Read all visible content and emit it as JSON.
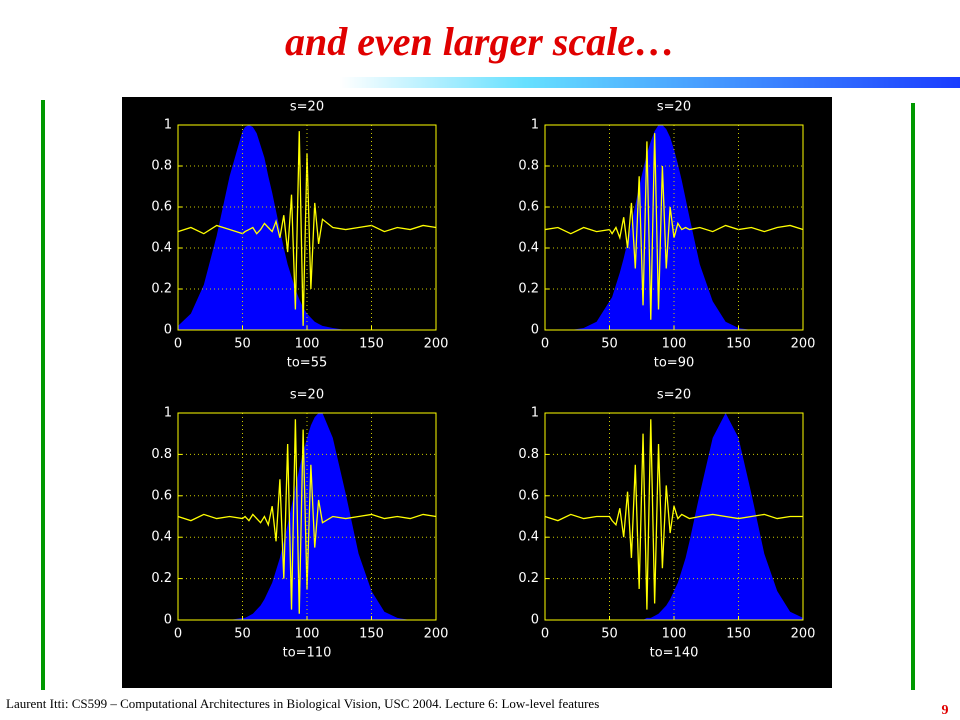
{
  "title": "and even larger scale…",
  "footer": "Laurent Itti: CS599 – Computational Architectures in Biological Vision, USC 2004. Lecture 6: Low-level features",
  "page_number": "9",
  "chart_data": [
    {
      "type": "area",
      "title": "s=20",
      "x_label": "to=55",
      "x": [
        0,
        10,
        20,
        30,
        40,
        50,
        52,
        55,
        58,
        61,
        64,
        67,
        70,
        73,
        76,
        79,
        82,
        85,
        88,
        91,
        94,
        97,
        100,
        103,
        106,
        109,
        112,
        120,
        130,
        140,
        150,
        160,
        170,
        180,
        190,
        200
      ],
      "xlim": [
        0,
        200
      ],
      "ylim": [
        0,
        1
      ],
      "xticks": [
        0,
        50,
        100,
        150,
        200
      ],
      "yticks": [
        0,
        0.2,
        0.4,
        0.6,
        0.8,
        1
      ],
      "grid": true,
      "series": [
        {
          "style": "area",
          "color": "#0000ff",
          "values": [
            0.02,
            0.08,
            0.22,
            0.46,
            0.75,
            0.97,
            0.99,
            1,
            0.99,
            0.96,
            0.9,
            0.84,
            0.75,
            0.67,
            0.58,
            0.49,
            0.4,
            0.32,
            0.26,
            0.2,
            0.15,
            0.11,
            0.08,
            0.06,
            0.04,
            0.03,
            0.02,
            0.01,
            0,
            0,
            0,
            0,
            0,
            0,
            0,
            0
          ]
        },
        {
          "style": "line",
          "color": "#ffff00",
          "values": [
            0.48,
            0.5,
            0.47,
            0.51,
            0.49,
            0.47,
            0.48,
            0.49,
            0.5,
            0.47,
            0.49,
            0.52,
            0.5,
            0.48,
            0.53,
            0.45,
            0.56,
            0.38,
            0.66,
            0.1,
            0.97,
            0.02,
            0.86,
            0.2,
            0.62,
            0.42,
            0.54,
            0.5,
            0.49,
            0.5,
            0.51,
            0.48,
            0.5,
            0.49,
            0.51,
            0.5
          ]
        }
      ]
    },
    {
      "type": "area",
      "title": "s=20",
      "x_label": "to=90",
      "x": [
        0,
        10,
        20,
        30,
        40,
        50,
        52,
        55,
        58,
        61,
        64,
        67,
        70,
        73,
        76,
        79,
        82,
        85,
        88,
        91,
        94,
        97,
        100,
        103,
        106,
        109,
        112,
        120,
        130,
        140,
        150,
        160,
        170,
        180,
        190,
        200
      ],
      "xlim": [
        0,
        200
      ],
      "ylim": [
        0,
        1
      ],
      "xticks": [
        0,
        50,
        100,
        150,
        200
      ],
      "yticks": [
        0,
        0.2,
        0.4,
        0.6,
        0.8,
        1
      ],
      "grid": true,
      "series": [
        {
          "style": "area",
          "color": "#0000ff",
          "values": [
            0,
            0,
            0,
            0.01,
            0.04,
            0.14,
            0.16,
            0.22,
            0.28,
            0.35,
            0.43,
            0.52,
            0.61,
            0.7,
            0.78,
            0.86,
            0.92,
            0.97,
            1,
            1,
            0.98,
            0.94,
            0.88,
            0.81,
            0.73,
            0.64,
            0.55,
            0.32,
            0.14,
            0.04,
            0.01,
            0,
            0,
            0,
            0,
            0
          ]
        },
        {
          "style": "line",
          "color": "#ffff00",
          "values": [
            0.49,
            0.5,
            0.47,
            0.5,
            0.48,
            0.49,
            0.47,
            0.5,
            0.45,
            0.55,
            0.4,
            0.62,
            0.3,
            0.75,
            0.12,
            0.92,
            0.05,
            0.96,
            0.1,
            0.8,
            0.3,
            0.6,
            0.45,
            0.52,
            0.49,
            0.5,
            0.49,
            0.5,
            0.48,
            0.51,
            0.49,
            0.5,
            0.48,
            0.5,
            0.51,
            0.49
          ]
        }
      ]
    },
    {
      "type": "area",
      "title": "s=20",
      "x_label": "to=110",
      "x": [
        0,
        10,
        20,
        30,
        40,
        50,
        52,
        55,
        58,
        61,
        64,
        67,
        70,
        73,
        76,
        79,
        82,
        85,
        88,
        91,
        94,
        97,
        100,
        103,
        106,
        109,
        112,
        120,
        130,
        140,
        150,
        160,
        170,
        180,
        190,
        200
      ],
      "xlim": [
        0,
        200
      ],
      "ylim": [
        0,
        1
      ],
      "xticks": [
        0,
        50,
        100,
        150,
        200
      ],
      "yticks": [
        0,
        0.2,
        0.4,
        0.6,
        0.8,
        1
      ],
      "grid": true,
      "series": [
        {
          "style": "area",
          "color": "#0000ff",
          "values": [
            0,
            0,
            0,
            0,
            0,
            0.01,
            0.01,
            0.02,
            0.03,
            0.05,
            0.07,
            0.1,
            0.14,
            0.18,
            0.24,
            0.3,
            0.38,
            0.46,
            0.55,
            0.64,
            0.73,
            0.81,
            0.88,
            0.94,
            0.98,
            1,
            1,
            0.88,
            0.61,
            0.32,
            0.14,
            0.04,
            0.01,
            0,
            0,
            0
          ]
        },
        {
          "style": "line",
          "color": "#ffff00",
          "values": [
            0.5,
            0.48,
            0.51,
            0.49,
            0.5,
            0.49,
            0.5,
            0.48,
            0.51,
            0.49,
            0.47,
            0.5,
            0.46,
            0.55,
            0.38,
            0.68,
            0.2,
            0.85,
            0.05,
            0.97,
            0.03,
            0.92,
            0.15,
            0.75,
            0.35,
            0.58,
            0.47,
            0.5,
            0.49,
            0.5,
            0.51,
            0.49,
            0.5,
            0.49,
            0.51,
            0.5
          ]
        }
      ]
    },
    {
      "type": "area",
      "title": "s=20",
      "x_label": "to=140",
      "x": [
        0,
        10,
        20,
        30,
        40,
        50,
        52,
        55,
        58,
        61,
        64,
        67,
        70,
        73,
        76,
        79,
        82,
        85,
        88,
        91,
        94,
        97,
        100,
        103,
        106,
        109,
        112,
        120,
        130,
        140,
        150,
        160,
        170,
        180,
        190,
        200
      ],
      "xlim": [
        0,
        200
      ],
      "ylim": [
        0,
        1
      ],
      "xticks": [
        0,
        50,
        100,
        150,
        200
      ],
      "yticks": [
        0,
        0.2,
        0.4,
        0.6,
        0.8,
        1
      ],
      "grid": true,
      "series": [
        {
          "style": "area",
          "color": "#0000ff",
          "values": [
            0,
            0,
            0,
            0,
            0,
            0,
            0,
            0,
            0,
            0,
            0,
            0,
            0,
            0,
            0,
            0.01,
            0.01,
            0.02,
            0.03,
            0.05,
            0.07,
            0.1,
            0.14,
            0.18,
            0.24,
            0.3,
            0.38,
            0.61,
            0.88,
            1,
            0.88,
            0.61,
            0.32,
            0.14,
            0.04,
            0.01
          ]
        },
        {
          "style": "line",
          "color": "#ffff00",
          "values": [
            0.5,
            0.48,
            0.51,
            0.49,
            0.5,
            0.5,
            0.48,
            0.46,
            0.54,
            0.4,
            0.62,
            0.3,
            0.75,
            0.15,
            0.9,
            0.05,
            0.97,
            0.08,
            0.85,
            0.25,
            0.65,
            0.42,
            0.55,
            0.49,
            0.51,
            0.5,
            0.49,
            0.5,
            0.51,
            0.5,
            0.49,
            0.5,
            0.51,
            0.49,
            0.5,
            0.5
          ]
        }
      ]
    }
  ]
}
